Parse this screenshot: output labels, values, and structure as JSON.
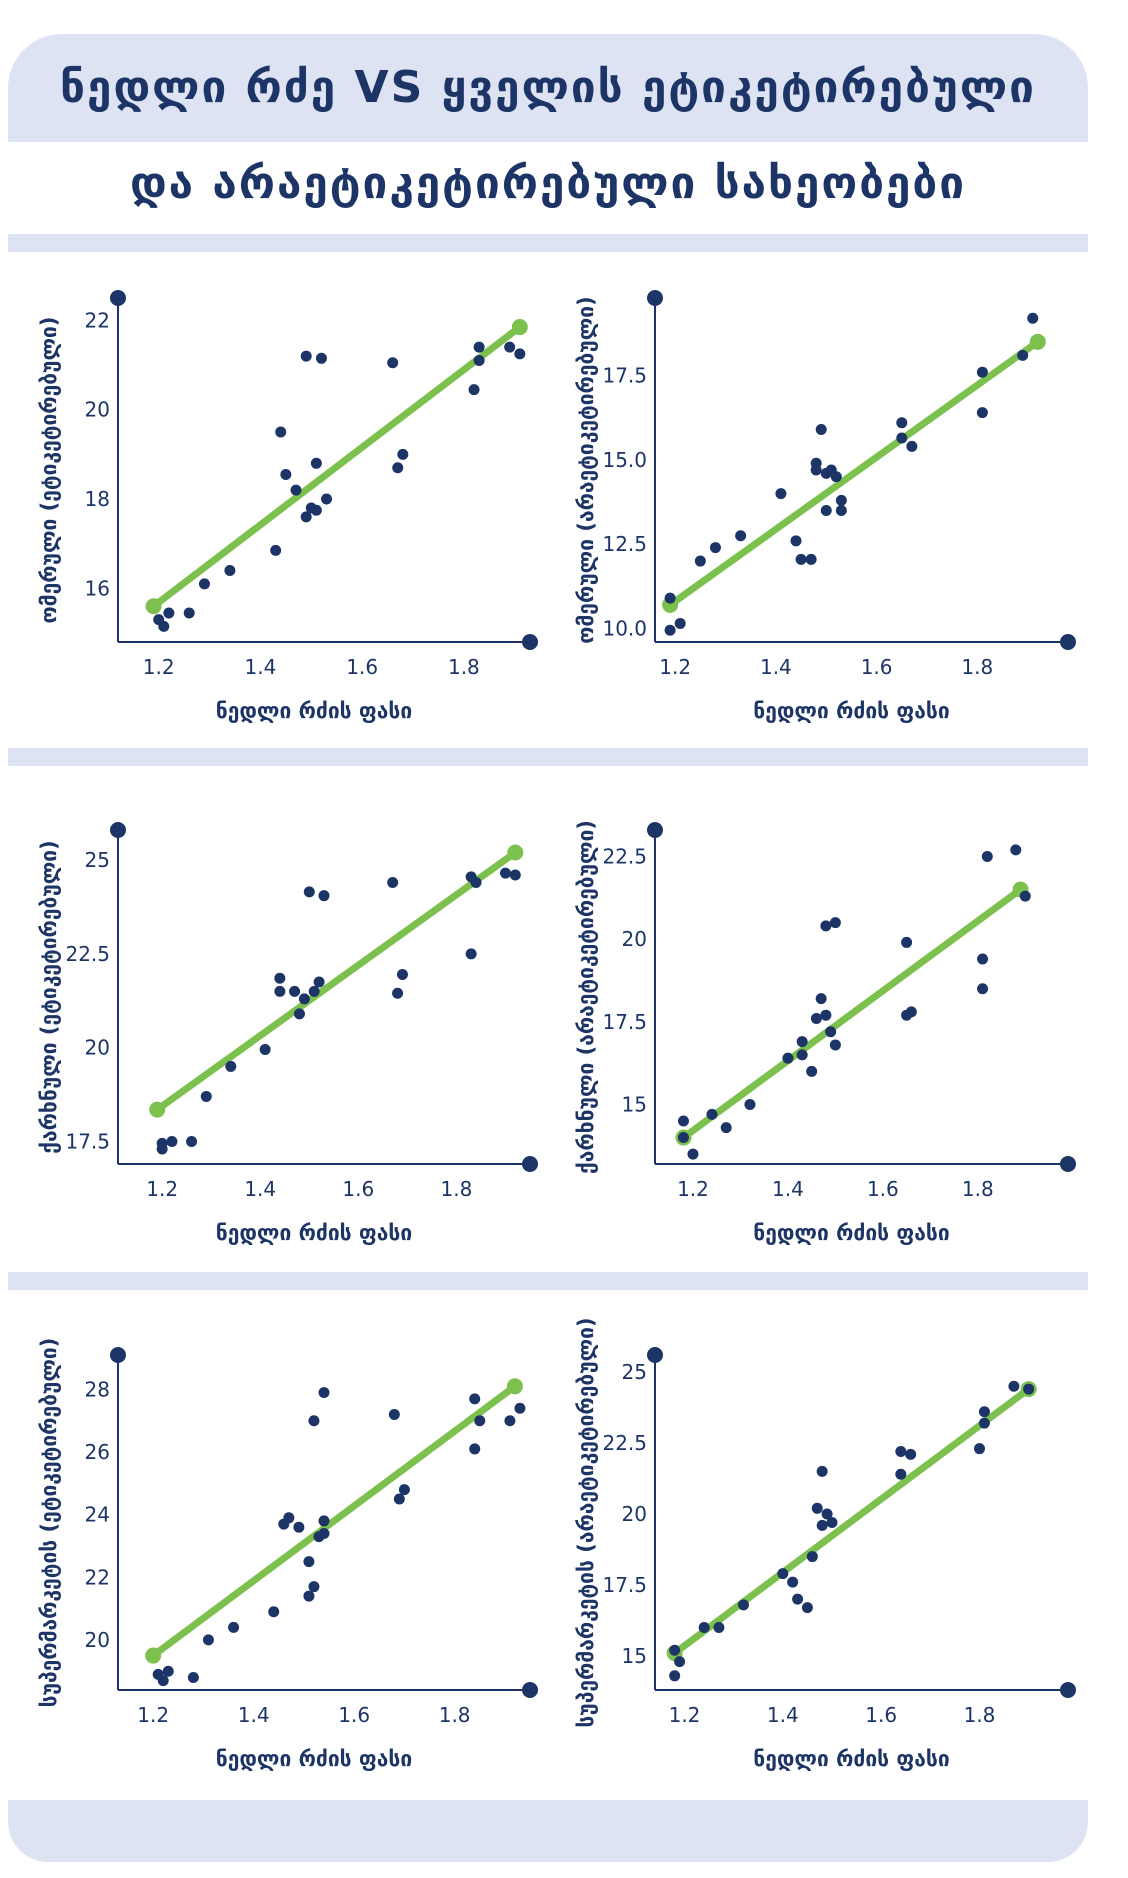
{
  "title": {
    "line1": "ნედლი რძე VS ყველის ეტიკეტირებული",
    "line2": "და არაეტიკეტირებული სახეობები"
  },
  "colors": {
    "band": "#dde3f3",
    "navy": "#1d3466",
    "green": "#7cc04d"
  },
  "chart_data": [
    {
      "type": "scatter",
      "xlabel": "ნედლი რძის  ფასი",
      "ylabel": "ომერული (ეტიკეტირებული)",
      "xlim": [
        1.12,
        1.93
      ],
      "ylim": [
        14.8,
        22.5
      ],
      "xticks": [
        "1.2",
        "1.4",
        "1.6",
        "1.8"
      ],
      "xtick_values": [
        1.2,
        1.4,
        1.6,
        1.8
      ],
      "yticks": [
        "16",
        "18",
        "20",
        "22"
      ],
      "ytick_values": [
        16,
        18,
        20,
        22
      ],
      "points": [
        [
          1.2,
          15.3
        ],
        [
          1.21,
          15.15
        ],
        [
          1.22,
          15.45
        ],
        [
          1.26,
          15.45
        ],
        [
          1.29,
          16.1
        ],
        [
          1.34,
          16.4
        ],
        [
          1.43,
          16.85
        ],
        [
          1.44,
          19.5
        ],
        [
          1.45,
          18.55
        ],
        [
          1.47,
          18.2
        ],
        [
          1.49,
          21.2
        ],
        [
          1.49,
          17.6
        ],
        [
          1.5,
          17.8
        ],
        [
          1.51,
          18.8
        ],
        [
          1.52,
          21.15
        ],
        [
          1.51,
          17.75
        ],
        [
          1.53,
          18.0
        ],
        [
          1.66,
          21.05
        ],
        [
          1.67,
          18.7
        ],
        [
          1.68,
          19.0
        ],
        [
          1.82,
          20.45
        ],
        [
          1.83,
          21.4
        ],
        [
          1.83,
          21.1
        ],
        [
          1.89,
          21.4
        ],
        [
          1.91,
          21.25
        ]
      ],
      "trend": [
        [
          1.19,
          15.6
        ],
        [
          1.91,
          21.85
        ]
      ]
    },
    {
      "type": "scatter",
      "xlabel": "ნედლი რძის  ფასი",
      "ylabel": "ომერული (არაეტიკეტირებული)",
      "xlim": [
        1.16,
        1.98
      ],
      "ylim": [
        9.6,
        19.8
      ],
      "xticks": [
        "1.2",
        "1.4",
        "1.6",
        "1.8"
      ],
      "xtick_values": [
        1.2,
        1.4,
        1.6,
        1.8
      ],
      "yticks": [
        "10.0",
        "12.5",
        "15.0",
        "17.5"
      ],
      "ytick_values": [
        10,
        12.5,
        15,
        17.5
      ],
      "points": [
        [
          1.19,
          10.9
        ],
        [
          1.19,
          9.95
        ],
        [
          1.21,
          10.15
        ],
        [
          1.25,
          12.0
        ],
        [
          1.28,
          12.4
        ],
        [
          1.33,
          12.75
        ],
        [
          1.41,
          14.0
        ],
        [
          1.44,
          12.6
        ],
        [
          1.45,
          12.05
        ],
        [
          1.47,
          12.05
        ],
        [
          1.48,
          14.9
        ],
        [
          1.48,
          14.7
        ],
        [
          1.49,
          15.9
        ],
        [
          1.5,
          14.6
        ],
        [
          1.5,
          13.5
        ],
        [
          1.51,
          14.7
        ],
        [
          1.52,
          14.5
        ],
        [
          1.53,
          13.8
        ],
        [
          1.53,
          13.5
        ],
        [
          1.65,
          16.1
        ],
        [
          1.65,
          15.65
        ],
        [
          1.67,
          15.4
        ],
        [
          1.81,
          16.4
        ],
        [
          1.81,
          17.6
        ],
        [
          1.89,
          18.1
        ],
        [
          1.91,
          19.2
        ]
      ],
      "trend": [
        [
          1.19,
          10.7
        ],
        [
          1.92,
          18.5
        ]
      ]
    },
    {
      "type": "scatter",
      "xlabel": "ნედლი რძის  ფასი",
      "ylabel": "ქარხნული (ეტიკეტირებული)",
      "xlim": [
        1.11,
        1.95
      ],
      "ylim": [
        16.9,
        25.8
      ],
      "xticks": [
        "1.2",
        "1.4",
        "1.6",
        "1.8"
      ],
      "xtick_values": [
        1.2,
        1.4,
        1.6,
        1.8
      ],
      "yticks": [
        "17.5",
        "20",
        "22.5",
        "25"
      ],
      "ytick_values": [
        17.5,
        20,
        22.5,
        25
      ],
      "points": [
        [
          1.2,
          17.45
        ],
        [
          1.2,
          17.3
        ],
        [
          1.22,
          17.5
        ],
        [
          1.26,
          17.5
        ],
        [
          1.29,
          18.7
        ],
        [
          1.34,
          19.5
        ],
        [
          1.41,
          19.95
        ],
        [
          1.44,
          21.85
        ],
        [
          1.44,
          21.5
        ],
        [
          1.47,
          21.5
        ],
        [
          1.48,
          20.9
        ],
        [
          1.49,
          21.3
        ],
        [
          1.5,
          24.15
        ],
        [
          1.51,
          21.5
        ],
        [
          1.52,
          21.75
        ],
        [
          1.53,
          24.05
        ],
        [
          1.67,
          24.4
        ],
        [
          1.68,
          21.45
        ],
        [
          1.69,
          21.95
        ],
        [
          1.83,
          22.5
        ],
        [
          1.83,
          24.55
        ],
        [
          1.84,
          24.4
        ],
        [
          1.9,
          24.65
        ],
        [
          1.92,
          24.6
        ]
      ],
      "trend": [
        [
          1.19,
          18.35
        ],
        [
          1.92,
          25.2
        ]
      ]
    },
    {
      "type": "scatter",
      "xlabel": "ნედლი რძის  ფასი",
      "ylabel": "ქარხნული (არაეტიკეტირებული)",
      "xlim": [
        1.12,
        1.99
      ],
      "ylim": [
        13.2,
        23.3
      ],
      "xticks": [
        "1.2",
        "1.4",
        "1.6",
        "1.8"
      ],
      "xtick_values": [
        1.2,
        1.4,
        1.6,
        1.8
      ],
      "yticks": [
        "15",
        "17.5",
        "20",
        "22.5"
      ],
      "ytick_values": [
        15,
        17.5,
        20,
        22.5
      ],
      "points": [
        [
          1.18,
          14.5
        ],
        [
          1.18,
          14.0
        ],
        [
          1.2,
          13.5
        ],
        [
          1.24,
          14.7
        ],
        [
          1.27,
          14.3
        ],
        [
          1.32,
          15.0
        ],
        [
          1.4,
          16.4
        ],
        [
          1.43,
          16.5
        ],
        [
          1.43,
          16.9
        ],
        [
          1.45,
          16.0
        ],
        [
          1.46,
          17.6
        ],
        [
          1.47,
          18.2
        ],
        [
          1.48,
          17.7
        ],
        [
          1.48,
          20.4
        ],
        [
          1.49,
          17.2
        ],
        [
          1.5,
          16.8
        ],
        [
          1.5,
          20.5
        ],
        [
          1.65,
          19.9
        ],
        [
          1.65,
          17.7
        ],
        [
          1.66,
          17.8
        ],
        [
          1.81,
          18.5
        ],
        [
          1.81,
          19.4
        ],
        [
          1.82,
          22.5
        ],
        [
          1.88,
          22.7
        ],
        [
          1.9,
          21.3
        ]
      ],
      "trend": [
        [
          1.18,
          14.0
        ],
        [
          1.89,
          21.5
        ]
      ]
    },
    {
      "type": "scatter",
      "xlabel": "ნედლი რძის  ფასი",
      "ylabel": "სუპერმარკეტის (ეტიკეტირებული)",
      "xlim": [
        1.13,
        1.95
      ],
      "ylim": [
        18.4,
        29.1
      ],
      "xticks": [
        "1.2",
        "1.4",
        "1.6",
        "1.8"
      ],
      "xtick_values": [
        1.2,
        1.4,
        1.6,
        1.8
      ],
      "yticks": [
        "20",
        "22",
        "24",
        "26",
        "28"
      ],
      "ytick_values": [
        20,
        22,
        24,
        26,
        28
      ],
      "points": [
        [
          1.21,
          18.9
        ],
        [
          1.22,
          18.7
        ],
        [
          1.23,
          19.0
        ],
        [
          1.28,
          18.8
        ],
        [
          1.31,
          20.0
        ],
        [
          1.36,
          20.4
        ],
        [
          1.44,
          20.9
        ],
        [
          1.46,
          23.7
        ],
        [
          1.47,
          23.9
        ],
        [
          1.49,
          23.6
        ],
        [
          1.51,
          22.5
        ],
        [
          1.51,
          21.4
        ],
        [
          1.52,
          21.7
        ],
        [
          1.52,
          27.0
        ],
        [
          1.53,
          23.3
        ],
        [
          1.54,
          23.4
        ],
        [
          1.54,
          23.8
        ],
        [
          1.54,
          27.9
        ],
        [
          1.68,
          27.2
        ],
        [
          1.69,
          24.5
        ],
        [
          1.7,
          24.8
        ],
        [
          1.84,
          26.1
        ],
        [
          1.84,
          27.7
        ],
        [
          1.85,
          27.0
        ],
        [
          1.91,
          27.0
        ],
        [
          1.93,
          27.4
        ]
      ],
      "trend": [
        [
          1.2,
          19.5
        ],
        [
          1.92,
          28.1
        ]
      ]
    },
    {
      "type": "scatter",
      "xlabel": "ნედლი რძის  ფასი",
      "ylabel": "სუპერმარკეტის (არაეტიკეტირებული)",
      "xlim": [
        1.14,
        1.98
      ],
      "ylim": [
        13.8,
        25.6
      ],
      "xticks": [
        "1.2",
        "1.4",
        "1.6",
        "1.8"
      ],
      "xtick_values": [
        1.2,
        1.4,
        1.6,
        1.8
      ],
      "yticks": [
        "15",
        "17.5",
        "20",
        "22.5",
        "25"
      ],
      "ytick_values": [
        15,
        17.5,
        20,
        22.5,
        25
      ],
      "points": [
        [
          1.18,
          15.2
        ],
        [
          1.18,
          14.3
        ],
        [
          1.19,
          14.8
        ],
        [
          1.24,
          16.0
        ],
        [
          1.27,
          16.0
        ],
        [
          1.32,
          16.8
        ],
        [
          1.4,
          17.9
        ],
        [
          1.42,
          17.6
        ],
        [
          1.43,
          17.0
        ],
        [
          1.45,
          16.7
        ],
        [
          1.46,
          18.5
        ],
        [
          1.47,
          20.2
        ],
        [
          1.48,
          19.6
        ],
        [
          1.48,
          21.5
        ],
        [
          1.49,
          20.0
        ],
        [
          1.5,
          19.7
        ],
        [
          1.64,
          22.2
        ],
        [
          1.64,
          21.4
        ],
        [
          1.66,
          22.1
        ],
        [
          1.8,
          22.3
        ],
        [
          1.81,
          23.2
        ],
        [
          1.81,
          23.6
        ],
        [
          1.87,
          24.5
        ],
        [
          1.9,
          24.4
        ]
      ],
      "trend": [
        [
          1.18,
          15.1
        ],
        [
          1.9,
          24.4
        ]
      ]
    }
  ]
}
